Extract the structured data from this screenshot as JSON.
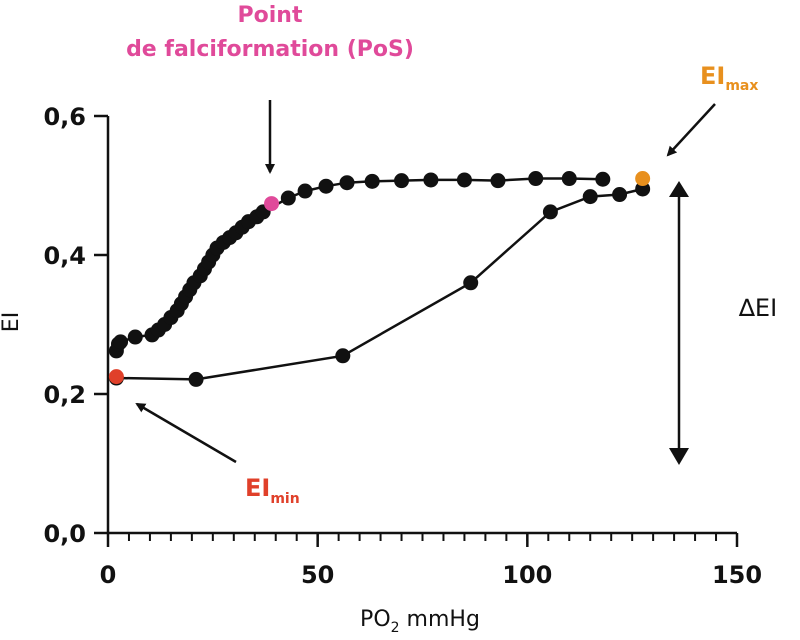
{
  "chart_data": {
    "type": "scatter",
    "xlabel": "PO",
    "xlabel_sub": "2",
    "xlabel_suffix": " mmHg",
    "ylabel": "EI",
    "xlim": [
      0,
      150
    ],
    "ylim": [
      0,
      0.6
    ],
    "x_ticks": [
      0,
      50,
      100,
      150
    ],
    "x_tick_labels": [
      "0",
      "50",
      "100",
      "150"
    ],
    "y_ticks": [
      0,
      0.2,
      0.4,
      0.6
    ],
    "y_tick_labels": [
      "0,0",
      "0,2",
      "0,4",
      "0,6"
    ],
    "x_minor_step": 5,
    "series": [
      {
        "role": "deoxygenation",
        "color": "#111111",
        "points": [
          [
            2,
            0.262
          ],
          [
            2.5,
            0.272
          ],
          [
            3,
            0.275
          ],
          [
            6.5,
            0.282
          ],
          [
            10.5,
            0.285
          ],
          [
            12,
            0.292
          ],
          [
            13.5,
            0.3
          ],
          [
            15,
            0.31
          ],
          [
            16.5,
            0.32
          ],
          [
            17.5,
            0.33
          ],
          [
            18.5,
            0.34
          ],
          [
            19.5,
            0.35
          ],
          [
            20.5,
            0.36
          ],
          [
            22,
            0.37
          ],
          [
            23,
            0.38
          ],
          [
            24,
            0.39
          ],
          [
            25,
            0.4
          ],
          [
            26,
            0.41
          ],
          [
            27.5,
            0.418
          ],
          [
            29,
            0.425
          ],
          [
            30.5,
            0.432
          ],
          [
            32,
            0.44
          ],
          [
            33.5,
            0.448
          ],
          [
            35.5,
            0.455
          ],
          [
            37,
            0.462
          ],
          [
            43,
            0.482
          ],
          [
            47,
            0.492
          ],
          [
            52,
            0.499
          ],
          [
            57,
            0.504
          ],
          [
            63,
            0.506
          ],
          [
            70,
            0.507
          ],
          [
            77,
            0.508
          ],
          [
            85,
            0.508
          ],
          [
            93,
            0.507
          ],
          [
            102,
            0.51
          ],
          [
            110,
            0.51
          ],
          [
            118,
            0.509
          ]
        ]
      },
      {
        "role": "reoxygenation",
        "color": "#111111",
        "points": [
          [
            2,
            0.223
          ],
          [
            21,
            0.221
          ],
          [
            56,
            0.255
          ],
          [
            86.5,
            0.36
          ],
          [
            105.5,
            0.462
          ],
          [
            115,
            0.484
          ],
          [
            122,
            0.487
          ],
          [
            127.5,
            0.495
          ]
        ]
      }
    ],
    "highlights": [
      {
        "name": "EI_min",
        "x": 2,
        "y": 0.225,
        "color": "#e0402a"
      },
      {
        "name": "PoS",
        "x": 39,
        "y": 0.474,
        "color": "#e04a9a"
      },
      {
        "name": "EI_max",
        "x": 127.5,
        "y": 0.51,
        "color": "#e8901e"
      }
    ],
    "annotations": {
      "pos_line1": "Point",
      "pos_line2": "de falciformation (PoS)",
      "eimax_main": "EI",
      "eimax_sub": "max",
      "eimin_main": "EI",
      "eimin_sub": "min",
      "delta": "∆EI"
    },
    "colors": {
      "pink": "#e04a9a",
      "orange": "#e8901e",
      "red": "#e0402a",
      "black": "#111111"
    }
  }
}
